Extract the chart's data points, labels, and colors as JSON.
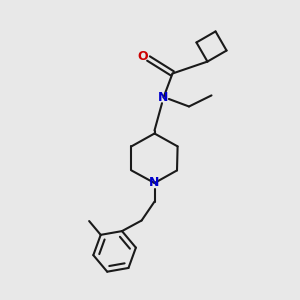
{
  "background_color": "#e8e8e8",
  "bond_color": "#1a1a1a",
  "N_color": "#0000cc",
  "O_color": "#cc0000",
  "line_width": 1.5,
  "figsize": [
    3.0,
    3.0
  ],
  "dpi": 100,
  "xlim": [
    0,
    10
  ],
  "ylim": [
    0,
    10
  ]
}
